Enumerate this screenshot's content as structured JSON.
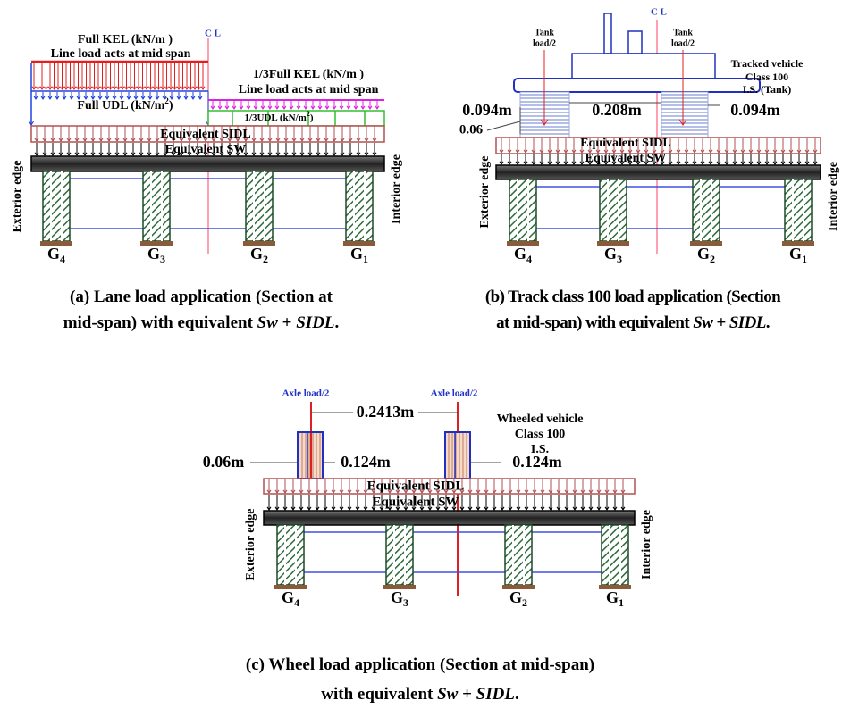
{
  "panel_a": {
    "center_line": "C L",
    "full_kel": "Full KEL (kN/m )",
    "full_kel_note": "Line load acts at mid span",
    "third_kel": "1/3Full KEL (kN/m )",
    "third_kel_note": "Line load acts at mid span",
    "full_udl": {
      "text": "Full UDL (kN/m",
      "sup": "2",
      "end": ")"
    },
    "third_udl": {
      "text": "1/3UDL (kN/m",
      "sup": "2",
      "end": ")"
    },
    "sidl": "Equivalent  SIDL",
    "sw": "Equivalent SW",
    "exterior": "Exterior edge",
    "interior": "Interior edge",
    "girders": [
      {
        "letter": "G",
        "sub": "4"
      },
      {
        "letter": "G",
        "sub": "3"
      },
      {
        "letter": "G",
        "sub": "2"
      },
      {
        "letter": "G",
        "sub": "1"
      }
    ],
    "caption": {
      "line1": "(a) Lane load application (Section at",
      "line2": "mid-span) with equivalent",
      "sw": "Sw",
      "plus": "+",
      "sidl": "SIDL",
      "end": "."
    }
  },
  "panel_b": {
    "center_line": "C L",
    "tank_load_left": [
      "Tank",
      "load/2"
    ],
    "tank_load_right": [
      "Tank",
      "load/2"
    ],
    "vehicle": [
      "Tracked vehicle",
      "Class 100",
      "I.S.  (Tank)"
    ],
    "dim_left": "0.094m",
    "dim_middle": "0.208m",
    "dim_right": "0.094m",
    "dim_small": "0.06",
    "sidl": "Equivalent  SIDL",
    "sw": "Equivalent SW",
    "exterior": "Exterior edge",
    "interior": "Interior edge",
    "girders": [
      {
        "letter": "G",
        "sub": "4"
      },
      {
        "letter": "G",
        "sub": "3"
      },
      {
        "letter": "G",
        "sub": "2"
      },
      {
        "letter": "G",
        "sub": "1"
      }
    ],
    "caption": {
      "line1": "(b) Track class 100 load application (Section",
      "line2": "at mid-span) with equivalent",
      "sw": "Sw",
      "plus": "+",
      "sidl": "SIDL",
      "end": "."
    }
  },
  "panel_c": {
    "axle_left": "Axle load/2",
    "axle_right": "Axle load/2",
    "dim_between": "0.2413m",
    "vehicle": [
      "Wheeled vehicle",
      "Class 100",
      "I.S."
    ],
    "dim_small": "0.06m",
    "dim_left": "0.124m",
    "dim_right": "0.124m",
    "sidl": "Equivalent SIDL",
    "sw": "Equivalent SW",
    "exterior": "Exterior edge",
    "interior": "Interior edge",
    "girders": [
      {
        "letter": "G",
        "sub": "4"
      },
      {
        "letter": "G",
        "sub": "3"
      },
      {
        "letter": "G",
        "sub": "2"
      },
      {
        "letter": "G",
        "sub": "1"
      }
    ],
    "caption": {
      "line1": "(c) Wheel load application (Section at mid-span)",
      "line2": "with equivalent",
      "sw": "Sw",
      "plus": "+",
      "sidl": "SIDL",
      "end": "."
    }
  }
}
